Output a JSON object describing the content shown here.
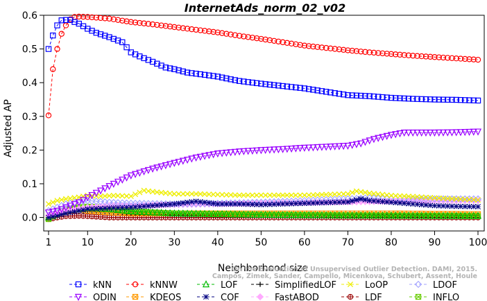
{
  "chart_data": {
    "type": "line",
    "title": "InternetAds_norm_02_v02",
    "xlabel": "Neighborhood size",
    "ylabel": "Adjusted AP",
    "xlim": [
      1,
      100
    ],
    "ylim": [
      -0.04,
      0.6
    ],
    "x_ticks": [
      1,
      10,
      20,
      30,
      40,
      50,
      60,
      70,
      80,
      90,
      100
    ],
    "y_ticks": [
      0.0,
      0.1,
      0.2,
      0.3,
      0.4,
      0.5,
      0.6
    ],
    "y_tick_labels": [
      "0.0",
      "0.1",
      "0.2",
      "0.3",
      "0.4",
      "0.5",
      "0.6"
    ],
    "grid": false,
    "legend_position": "bottom",
    "credit_lines": [
      "Campos, Zimek, Sander, Campello, Micenkova, Schubert, Assent, Houle",
      "On the Evaluation of Unsupervised Outlier Detection. DAMI, 2015."
    ],
    "series": [
      {
        "name": "kNN",
        "color": "#0000ff",
        "marker": "square",
        "dash": "4,3",
        "points": [
          [
            1,
            0.5
          ],
          [
            2,
            0.54
          ],
          [
            3,
            0.57
          ],
          [
            4,
            0.585
          ],
          [
            5,
            0.586
          ],
          [
            6,
            0.586
          ],
          [
            7,
            0.58
          ],
          [
            8,
            0.575
          ],
          [
            10,
            0.56
          ],
          [
            12,
            0.548
          ],
          [
            15,
            0.535
          ],
          [
            18,
            0.52
          ],
          [
            20,
            0.49
          ],
          [
            22,
            0.478
          ],
          [
            25,
            0.462
          ],
          [
            28,
            0.445
          ],
          [
            30,
            0.44
          ],
          [
            33,
            0.43
          ],
          [
            36,
            0.425
          ],
          [
            40,
            0.418
          ],
          [
            43,
            0.41
          ],
          [
            45,
            0.405
          ],
          [
            50,
            0.397
          ],
          [
            55,
            0.39
          ],
          [
            60,
            0.383
          ],
          [
            65,
            0.373
          ],
          [
            70,
            0.363
          ],
          [
            75,
            0.36
          ],
          [
            80,
            0.355
          ],
          [
            85,
            0.352
          ],
          [
            90,
            0.35
          ],
          [
            95,
            0.349
          ],
          [
            100,
            0.347
          ]
        ]
      },
      {
        "name": "kNNW",
        "color": "#ff0000",
        "marker": "circle",
        "dash": "4,3",
        "points": [
          [
            1,
            0.303
          ],
          [
            2,
            0.44
          ],
          [
            3,
            0.5
          ],
          [
            4,
            0.545
          ],
          [
            5,
            0.57
          ],
          [
            6,
            0.588
          ],
          [
            7,
            0.595
          ],
          [
            8,
            0.596
          ],
          [
            10,
            0.595
          ],
          [
            15,
            0.59
          ],
          [
            20,
            0.58
          ],
          [
            25,
            0.573
          ],
          [
            30,
            0.565
          ],
          [
            35,
            0.557
          ],
          [
            40,
            0.549
          ],
          [
            45,
            0.539
          ],
          [
            50,
            0.53
          ],
          [
            55,
            0.52
          ],
          [
            60,
            0.51
          ],
          [
            65,
            0.503
          ],
          [
            70,
            0.496
          ],
          [
            75,
            0.49
          ],
          [
            80,
            0.485
          ],
          [
            85,
            0.48
          ],
          [
            90,
            0.476
          ],
          [
            95,
            0.472
          ],
          [
            100,
            0.468
          ]
        ]
      },
      {
        "name": "LOF",
        "color": "#00bb00",
        "marker": "triangle",
        "dash": "4,3",
        "points": [
          [
            1,
            0.0
          ],
          [
            3,
            0.012
          ],
          [
            5,
            0.02
          ],
          [
            7,
            0.025
          ],
          [
            10,
            0.028
          ],
          [
            15,
            0.025
          ],
          [
            20,
            0.018
          ],
          [
            30,
            0.012
          ],
          [
            40,
            0.01
          ],
          [
            50,
            0.008
          ],
          [
            60,
            0.007
          ],
          [
            70,
            0.006
          ],
          [
            80,
            0.006
          ],
          [
            90,
            0.005
          ],
          [
            100,
            0.005
          ]
        ]
      },
      {
        "name": "SimplifiedLOF",
        "color": "#000000",
        "marker": "plus",
        "dash": "4,3",
        "points": [
          [
            1,
            0.0
          ],
          [
            3,
            0.008
          ],
          [
            5,
            0.015
          ],
          [
            8,
            0.018
          ],
          [
            10,
            0.018
          ],
          [
            15,
            0.016
          ],
          [
            20,
            0.012
          ],
          [
            30,
            0.008
          ],
          [
            40,
            0.006
          ],
          [
            50,
            0.005
          ],
          [
            60,
            0.004
          ],
          [
            70,
            0.004
          ],
          [
            80,
            0.003
          ],
          [
            90,
            0.003
          ],
          [
            100,
            0.003
          ]
        ]
      },
      {
        "name": "LoOP",
        "color": "#eeee00",
        "marker": "cross",
        "dash": "4,3",
        "points": [
          [
            1,
            0.04
          ],
          [
            3,
            0.05
          ],
          [
            5,
            0.055
          ],
          [
            8,
            0.06
          ],
          [
            10,
            0.065
          ],
          [
            13,
            0.063
          ],
          [
            16,
            0.065
          ],
          [
            20,
            0.063
          ],
          [
            23,
            0.08
          ],
          [
            26,
            0.075
          ],
          [
            30,
            0.07
          ],
          [
            35,
            0.07
          ],
          [
            40,
            0.068
          ],
          [
            45,
            0.066
          ],
          [
            50,
            0.066
          ],
          [
            55,
            0.066
          ],
          [
            60,
            0.066
          ],
          [
            65,
            0.068
          ],
          [
            70,
            0.07
          ],
          [
            72,
            0.078
          ],
          [
            75,
            0.072
          ],
          [
            80,
            0.065
          ],
          [
            85,
            0.062
          ],
          [
            90,
            0.058
          ],
          [
            95,
            0.055
          ],
          [
            100,
            0.052
          ]
        ]
      },
      {
        "name": "LDOF",
        "color": "#a0a0ff",
        "marker": "diamond",
        "dash": "4,3",
        "points": [
          [
            1,
            0.02
          ],
          [
            5,
            0.04
          ],
          [
            10,
            0.05
          ],
          [
            15,
            0.045
          ],
          [
            20,
            0.042
          ],
          [
            30,
            0.04
          ],
          [
            40,
            0.042
          ],
          [
            50,
            0.045
          ],
          [
            60,
            0.05
          ],
          [
            70,
            0.055
          ],
          [
            75,
            0.058
          ],
          [
            80,
            0.055
          ],
          [
            90,
            0.055
          ],
          [
            100,
            0.055
          ]
        ]
      },
      {
        "name": "ODIN",
        "color": "#9900ff",
        "marker": "triangle-down",
        "dash": "4,3",
        "points": [
          [
            1,
            0.015
          ],
          [
            3,
            0.02
          ],
          [
            5,
            0.03
          ],
          [
            8,
            0.045
          ],
          [
            10,
            0.06
          ],
          [
            13,
            0.08
          ],
          [
            16,
            0.1
          ],
          [
            20,
            0.125
          ],
          [
            25,
            0.145
          ],
          [
            30,
            0.162
          ],
          [
            35,
            0.178
          ],
          [
            40,
            0.19
          ],
          [
            45,
            0.196
          ],
          [
            50,
            0.2
          ],
          [
            55,
            0.203
          ],
          [
            60,
            0.207
          ],
          [
            65,
            0.21
          ],
          [
            70,
            0.213
          ],
          [
            73,
            0.22
          ],
          [
            76,
            0.233
          ],
          [
            80,
            0.245
          ],
          [
            83,
            0.252
          ],
          [
            86,
            0.252
          ],
          [
            90,
            0.252
          ],
          [
            95,
            0.253
          ],
          [
            100,
            0.255
          ]
        ]
      },
      {
        "name": "KDEOS",
        "color": "#ff9900",
        "marker": "square-x",
        "dash": "4,3",
        "points": [
          [
            1,
            0.0
          ],
          [
            5,
            0.018
          ],
          [
            8,
            0.025
          ],
          [
            10,
            0.02
          ],
          [
            15,
            0.015
          ],
          [
            20,
            0.012
          ],
          [
            30,
            0.012
          ],
          [
            40,
            0.012
          ],
          [
            50,
            0.012
          ],
          [
            60,
            0.012
          ],
          [
            70,
            0.012
          ],
          [
            80,
            0.012
          ],
          [
            90,
            0.011
          ],
          [
            100,
            0.01
          ]
        ]
      },
      {
        "name": "COF",
        "color": "#000080",
        "marker": "asterisk",
        "dash": "4,3",
        "points": [
          [
            1,
            0.0
          ],
          [
            3,
            0.005
          ],
          [
            5,
            0.012
          ],
          [
            8,
            0.02
          ],
          [
            10,
            0.025
          ],
          [
            15,
            0.028
          ],
          [
            20,
            0.03
          ],
          [
            25,
            0.035
          ],
          [
            30,
            0.04
          ],
          [
            35,
            0.048
          ],
          [
            37,
            0.045
          ],
          [
            40,
            0.04
          ],
          [
            45,
            0.04
          ],
          [
            50,
            0.038
          ],
          [
            55,
            0.04
          ],
          [
            60,
            0.042
          ],
          [
            65,
            0.044
          ],
          [
            70,
            0.046
          ],
          [
            73,
            0.055
          ],
          [
            75,
            0.05
          ],
          [
            80,
            0.045
          ],
          [
            85,
            0.04
          ],
          [
            90,
            0.035
          ],
          [
            95,
            0.033
          ],
          [
            100,
            0.032
          ]
        ]
      },
      {
        "name": "FastABOD",
        "color": "#ffaaff",
        "marker": "diamond-filled",
        "dash": "4,3",
        "points": [
          [
            1,
            0.005
          ],
          [
            5,
            0.02
          ],
          [
            10,
            0.03
          ],
          [
            15,
            0.035
          ],
          [
            20,
            0.035
          ],
          [
            30,
            0.038
          ],
          [
            40,
            0.04
          ],
          [
            50,
            0.042
          ],
          [
            60,
            0.044
          ],
          [
            70,
            0.046
          ],
          [
            80,
            0.048
          ],
          [
            90,
            0.05
          ],
          [
            100,
            0.05
          ]
        ]
      },
      {
        "name": "LDF",
        "color": "#990000",
        "marker": "circle-plus",
        "dash": "4,3",
        "points": [
          [
            1,
            -0.005
          ],
          [
            3,
            0.0
          ],
          [
            5,
            0.004
          ],
          [
            8,
            0.005
          ],
          [
            10,
            0.004
          ],
          [
            15,
            0.0
          ],
          [
            20,
            0.0
          ],
          [
            30,
            0.0
          ],
          [
            40,
            0.0
          ],
          [
            50,
            0.0
          ],
          [
            60,
            0.0
          ],
          [
            70,
            0.0
          ],
          [
            80,
            0.0
          ],
          [
            90,
            0.0
          ],
          [
            100,
            0.0
          ]
        ]
      },
      {
        "name": "INFLO",
        "color": "#66cc00",
        "marker": "square-x",
        "dash": "4,3",
        "points": [
          [
            1,
            -0.005
          ],
          [
            3,
            0.01
          ],
          [
            5,
            0.025
          ],
          [
            8,
            0.03
          ],
          [
            10,
            0.032
          ],
          [
            13,
            0.03
          ],
          [
            16,
            0.028
          ],
          [
            20,
            0.02
          ],
          [
            25,
            0.015
          ],
          [
            30,
            0.012
          ],
          [
            40,
            0.01
          ],
          [
            50,
            0.008
          ],
          [
            60,
            0.007
          ],
          [
            70,
            0.006
          ],
          [
            80,
            0.005
          ],
          [
            90,
            0.005
          ],
          [
            100,
            0.004
          ]
        ]
      }
    ]
  }
}
